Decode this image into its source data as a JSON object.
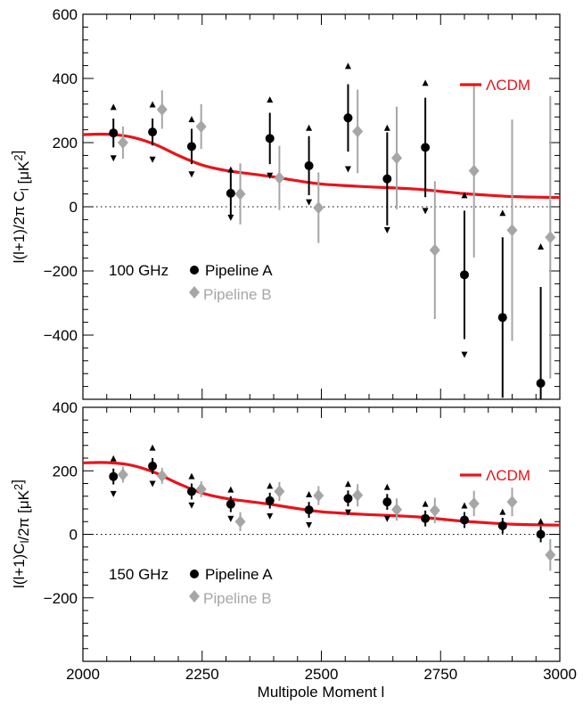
{
  "chart_data": [
    {
      "type": "scatter",
      "panel": "top",
      "frequency_label": "100 GHz",
      "ylabel": "l(l+1)/2π C_l [μK^2]",
      "xlabel": "",
      "xlim": [
        2000,
        3000
      ],
      "ylim": [
        -600,
        600
      ],
      "x_ticks": [
        2000,
        2250,
        2500,
        2750,
        3000
      ],
      "y_ticks": [
        -400,
        -200,
        0,
        200,
        400,
        600
      ],
      "y_tick_labels": [
        "−400",
        "−200",
        "0",
        "200",
        "400",
        "600"
      ],
      "theory": {
        "name": "ΛCDM",
        "color": "#e8141b",
        "x": [
          2000,
          2050,
          2100,
          2150,
          2200,
          2250,
          2300,
          2350,
          2400,
          2450,
          2500,
          2550,
          2600,
          2650,
          2700,
          2750,
          2800,
          2850,
          2900,
          2950,
          3000
        ],
        "y": [
          225,
          226,
          218,
          195,
          160,
          130,
          113,
          103,
          93,
          81,
          71,
          66,
          62,
          59,
          55,
          48,
          41,
          36,
          32,
          30,
          29
        ]
      },
      "series": [
        {
          "name": "Pipeline A",
          "color": "#000000",
          "marker": "circle",
          "x": [
            2064,
            2146,
            2228,
            2310,
            2392,
            2474,
            2556,
            2638,
            2718,
            2800,
            2880,
            2960
          ],
          "y": [
            230,
            233,
            188,
            42,
            213,
            128,
            277,
            87,
            185,
            -212,
            -345,
            -550
          ],
          "err": [
            45,
            42,
            55,
            70,
            80,
            92,
            105,
            145,
            155,
            200,
            250,
            300
          ],
          "upper_limits": [
            310,
            318,
            272,
            115,
            333,
            245,
            438,
            245,
            385,
            35,
            -20,
            -125
          ],
          "lower_limits": [
            152,
            148,
            102,
            -33,
            98,
            15,
            118,
            -72,
            -12,
            -460,
            null,
            null
          ]
        },
        {
          "name": "Pipeline B",
          "color": "#a6a6a6",
          "marker": "diamond",
          "x": [
            2084,
            2166,
            2248,
            2330,
            2412,
            2494,
            2576,
            2658,
            2738,
            2820,
            2900,
            2980
          ],
          "y": [
            200,
            303,
            250,
            40,
            90,
            -3,
            235,
            152,
            -135,
            112,
            -73,
            -95
          ],
          "err": [
            50,
            60,
            70,
            95,
            100,
            110,
            130,
            160,
            215,
            270,
            345,
            440
          ]
        }
      ]
    },
    {
      "type": "scatter",
      "panel": "bottom",
      "frequency_label": "150 GHz",
      "ylabel": "l(l+1)C_l/2π [μK^2]",
      "xlabel": "Multipole Moment l",
      "xlim": [
        2000,
        3000
      ],
      "ylim": [
        -400,
        400
      ],
      "x_ticks": [
        2000,
        2250,
        2500,
        2750,
        3000
      ],
      "y_ticks": [
        -200,
        0,
        200,
        400
      ],
      "y_tick_labels": [
        "−200",
        "0",
        "200",
        "400"
      ],
      "theory": {
        "name": "ΛCDM",
        "color": "#e8141b",
        "x": [
          2000,
          2050,
          2100,
          2150,
          2200,
          2250,
          2300,
          2350,
          2400,
          2450,
          2500,
          2550,
          2600,
          2650,
          2700,
          2750,
          2800,
          2850,
          2900,
          2950,
          3000
        ],
        "y": [
          225,
          226,
          218,
          195,
          160,
          130,
          113,
          103,
          93,
          81,
          71,
          66,
          62,
          59,
          55,
          48,
          41,
          36,
          32,
          30,
          29
        ]
      },
      "series": [
        {
          "name": "Pipeline A",
          "color": "#000000",
          "marker": "circle",
          "x": [
            2064,
            2146,
            2228,
            2310,
            2392,
            2474,
            2556,
            2638,
            2718,
            2800,
            2880,
            2960
          ],
          "y": [
            182,
            215,
            135,
            95,
            106,
            77,
            113,
            102,
            50,
            45,
            27,
            0
          ],
          "err": [
            25,
            25,
            25,
            25,
            25,
            25,
            25,
            25,
            25,
            25,
            25,
            25
          ],
          "upper_limits": [
            238,
            272,
            182,
            140,
            152,
            125,
            158,
            148,
            95,
            90,
            70,
            40
          ],
          "lower_limits": [
            128,
            160,
            92,
            50,
            58,
            30,
            70,
            50,
            null,
            null,
            null,
            null
          ]
        },
        {
          "name": "Pipeline B",
          "color": "#a6a6a6",
          "marker": "diamond",
          "x": [
            2084,
            2166,
            2248,
            2330,
            2412,
            2494,
            2576,
            2658,
            2738,
            2820,
            2900,
            2980
          ],
          "y": [
            188,
            184,
            142,
            40,
            135,
            122,
            123,
            78,
            75,
            97,
            102,
            -65
          ],
          "err": [
            25,
            25,
            25,
            30,
            30,
            30,
            35,
            35,
            40,
            40,
            45,
            50
          ]
        }
      ]
    }
  ]
}
